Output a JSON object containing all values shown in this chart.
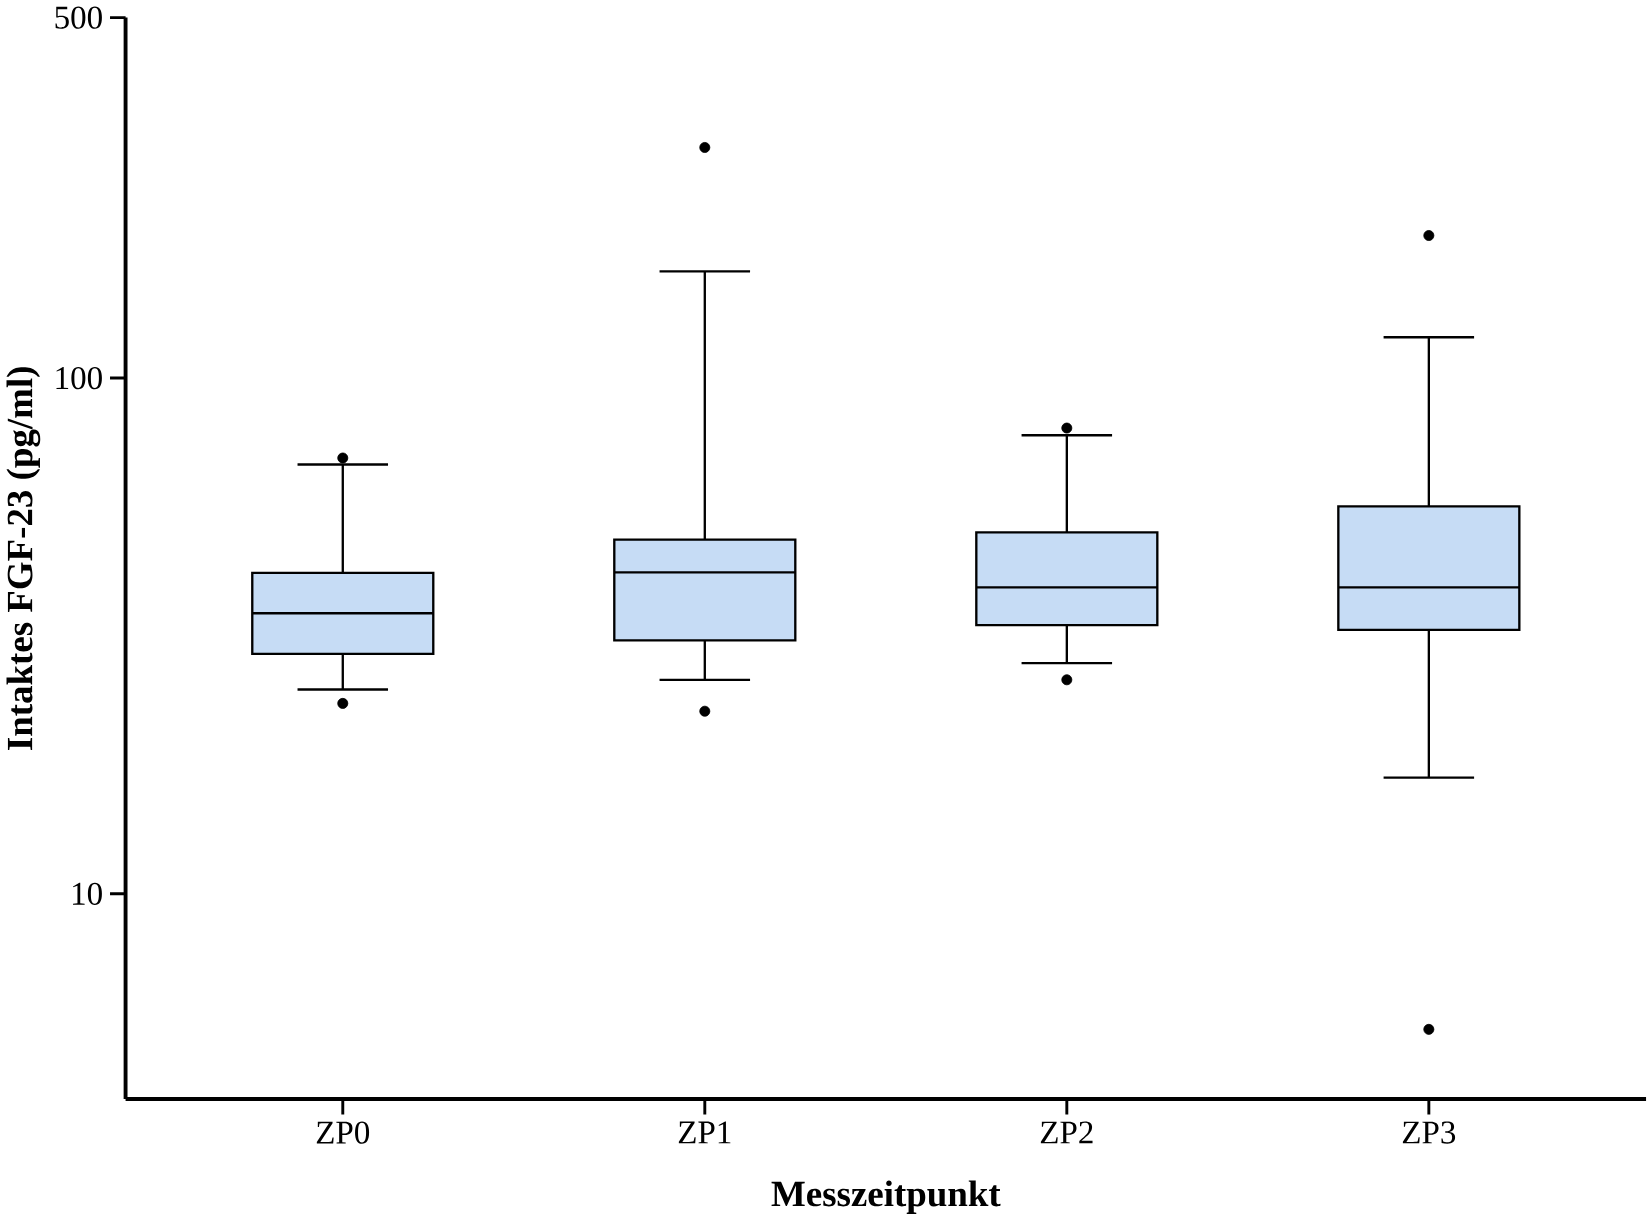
{
  "chart_data": {
    "type": "box",
    "xlabel": "Messzeitpunkt",
    "ylabel": "Intaktes FGF-23 (pg/ml)",
    "categories": [
      "ZP0",
      "ZP1",
      "ZP2",
      "ZP3"
    ],
    "log": true,
    "ylim": [
      4,
      500
    ],
    "yticks": [
      10,
      100,
      500
    ],
    "color": "#c6dcf5",
    "boxes": [
      {
        "low": 24.9,
        "q1": 29.2,
        "median": 35,
        "q3": 41.9,
        "high": 68,
        "outliers": [
          23.4,
          70
        ]
      },
      {
        "low": 26,
        "q1": 31,
        "median": 42,
        "q3": 48.6,
        "high": 161,
        "outliers": [
          22.6,
          280
        ]
      },
      {
        "low": 28,
        "q1": 33.2,
        "median": 39.3,
        "q3": 50.2,
        "high": 77.5,
        "outliers": [
          26,
          80
        ]
      },
      {
        "low": 16.8,
        "q1": 32.5,
        "median": 39.3,
        "q3": 56.4,
        "high": 120,
        "outliers": [
          5.46,
          189
        ]
      }
    ]
  }
}
